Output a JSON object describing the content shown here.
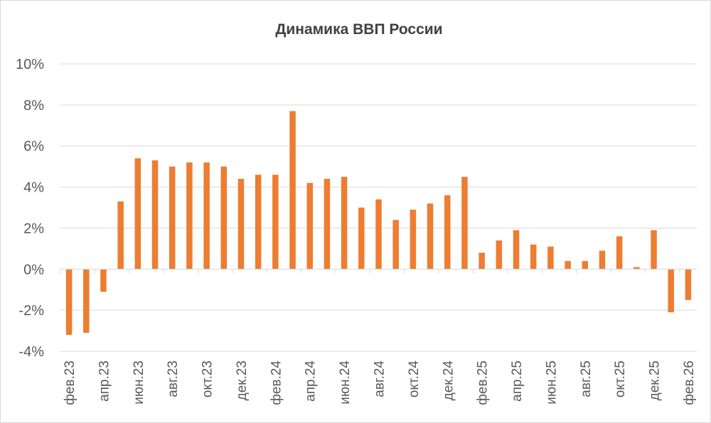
{
  "chart_data": {
    "type": "bar",
    "title": "Динамика ВВП России",
    "xlabel": "",
    "ylabel": "",
    "ylim": [
      -4,
      10
    ],
    "yticks": [
      "-4%",
      "-2%",
      "0%",
      "2%",
      "4%",
      "6%",
      "8%",
      "10%"
    ],
    "ytick_values": [
      -4,
      -2,
      0,
      2,
      4,
      6,
      8,
      10
    ],
    "grid": true,
    "legend": "none",
    "color": "#ED7D31",
    "categories": [
      "фев.23",
      "мар.23",
      "апр.23",
      "май.23",
      "июн.23",
      "июл.23",
      "авг.23",
      "сен.23",
      "окт.23",
      "ноя.23",
      "дек.23",
      "янв.24",
      "фев.24",
      "мар.24",
      "апр.24",
      "май.24",
      "июн.24",
      "июл.24",
      "авг.24",
      "сен.24",
      "окт.24",
      "ноя.24",
      "дек.24",
      "янв.25",
      "фев.25",
      "мар.25",
      "апр.25",
      "май.25",
      "июн.25",
      "июл.25",
      "авг.25",
      "сен.25",
      "окт.25",
      "ноя.25",
      "дек.25",
      "янв.26",
      "фев.26"
    ],
    "xtick_labels": [
      "фев.23",
      "апр.23",
      "июн.23",
      "авг.23",
      "окт.23",
      "дек.23",
      "фев.24",
      "апр.24",
      "июн.24",
      "авг.24",
      "окт.24",
      "дек.24",
      "фев.25",
      "апр.25",
      "июн.25",
      "авг.25",
      "окт.25",
      "дек.25",
      "фев.26"
    ],
    "values": [
      -3.2,
      -3.1,
      -1.1,
      3.3,
      5.4,
      5.3,
      5.0,
      5.2,
      5.2,
      5.0,
      4.4,
      4.6,
      4.6,
      7.7,
      4.2,
      4.4,
      4.5,
      3.0,
      3.4,
      2.4,
      2.9,
      3.2,
      3.6,
      4.5,
      0.8,
      1.4,
      1.9,
      1.2,
      1.1,
      0.4,
      0.4,
      0.9,
      1.6,
      0.1,
      1.9,
      -2.1,
      -1.5
    ]
  }
}
